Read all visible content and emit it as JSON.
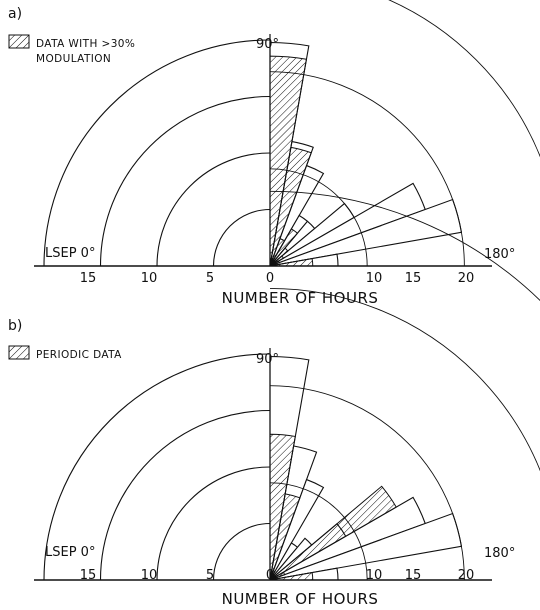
{
  "colors": {
    "ink": "#111111",
    "background": "#ffffff"
  },
  "chart_data": [
    {
      "panel_label": "a)",
      "type": "polar-histogram",
      "legend": {
        "swatch": "hatched",
        "text_lines": [
          "DATA WITH >30%",
          "MODULATION"
        ]
      },
      "angle_labels": {
        "start": "LSEP 0°",
        "middle": "90°",
        "end": "180°"
      },
      "xlabel": "NUMBER OF HOURS",
      "ticks_left": [
        "15",
        "10",
        "5",
        "0"
      ],
      "ticks_right": [
        "10",
        "15",
        "20"
      ],
      "rings": [
        5,
        10,
        15,
        20
      ],
      "rlim": [
        0,
        21
      ],
      "bin_width_deg": 10,
      "total": [
        {
          "start": 90,
          "value": 11.5
        },
        {
          "start": 100,
          "value": 6.5
        },
        {
          "start": 110,
          "value": 5.5
        },
        {
          "start": 120,
          "value": 3
        },
        {
          "start": 130,
          "value": 3
        },
        {
          "start": 140,
          "value": 5
        },
        {
          "start": 150,
          "value": 8.5
        },
        {
          "start": 160,
          "value": 10
        },
        {
          "start": 170,
          "value": 3.5
        }
      ],
      "hatched": [
        {
          "start": 90,
          "value": 10.8
        },
        {
          "start": 100,
          "value": 6.2
        },
        {
          "start": 110,
          "value": 1.5
        },
        {
          "start": 120,
          "value": 2.2
        },
        {
          "start": 130,
          "value": 1.2
        },
        {
          "start": 140,
          "value": 0.8
        },
        {
          "start": 150,
          "value": 0.5
        },
        {
          "start": 160,
          "value": 0.2
        },
        {
          "start": 170,
          "value": 2.2
        }
      ]
    },
    {
      "panel_label": "b)",
      "type": "polar-histogram",
      "legend": {
        "swatch": "hatched",
        "text_lines": [
          "PERIODIC DATA"
        ]
      },
      "angle_labels": {
        "start": "LSEP 0°",
        "middle": "90°",
        "end": "180°"
      },
      "xlabel": "NUMBER OF HOURS",
      "ticks_left": [
        "15",
        "10",
        "5",
        "0"
      ],
      "ticks_right": [
        "10",
        "15",
        "20"
      ],
      "rings": [
        5,
        10,
        15,
        20
      ],
      "rlim": [
        0,
        21
      ],
      "bin_width_deg": 10,
      "total": [
        {
          "start": 90,
          "value": 11.5
        },
        {
          "start": 100,
          "value": 7
        },
        {
          "start": 110,
          "value": 5.5
        },
        {
          "start": 120,
          "value": 2.2
        },
        {
          "start": 130,
          "value": 2.8
        },
        {
          "start": 140,
          "value": 4.5
        },
        {
          "start": 150,
          "value": 8.5
        },
        {
          "start": 160,
          "value": 10
        },
        {
          "start": 170,
          "value": 3.5
        }
      ],
      "hatched": [
        {
          "start": 90,
          "value": 7.5
        },
        {
          "start": 100,
          "value": 4.5
        },
        {
          "start": 110,
          "value": 0.5
        },
        {
          "start": 120,
          "value": 0.3
        },
        {
          "start": 130,
          "value": 0.3
        },
        {
          "start": 140,
          "value": 7.5
        },
        {
          "start": 150,
          "value": 0.8
        },
        {
          "start": 160,
          "value": 0.3
        },
        {
          "start": 170,
          "value": 2.2
        }
      ]
    }
  ]
}
